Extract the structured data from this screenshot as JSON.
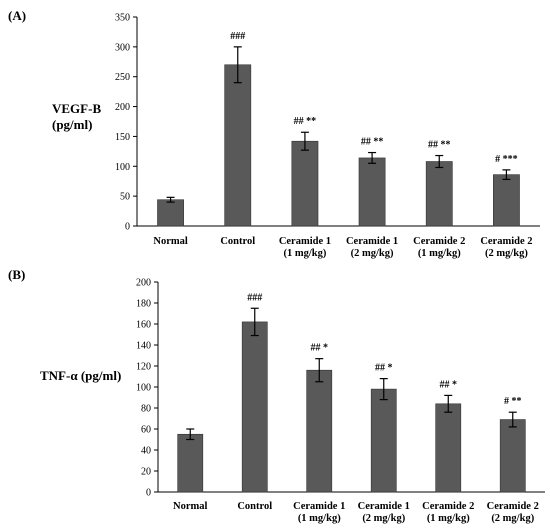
{
  "chart_data": [
    {
      "type": "bar",
      "panel_label": "(A)",
      "ylabel_lines": [
        "VEGF-B",
        "(pg/ml)"
      ],
      "categories": [
        [
          "Normal"
        ],
        [
          "Control"
        ],
        [
          "Ceramide 1",
          "(1 mg/kg)"
        ],
        [
          "Ceramide 1",
          "(2 mg/kg)"
        ],
        [
          "Ceramide 2",
          "(1 mg/kg)"
        ],
        [
          "Ceramide 2",
          "(2 mg/kg)"
        ]
      ],
      "values": [
        44,
        270,
        142,
        114,
        108,
        86
      ],
      "errors": [
        4,
        30,
        15,
        9,
        10,
        8
      ],
      "annotations": [
        "",
        "###",
        "## **",
        "## **",
        "## **",
        "# ***"
      ],
      "ylim": [
        0,
        350
      ],
      "yticks": [
        0,
        50,
        100,
        150,
        200,
        250,
        300,
        350
      ],
      "bar_color": "#595959",
      "grid": false,
      "legend": "none"
    },
    {
      "type": "bar",
      "panel_label": "(B)",
      "ylabel_lines": [
        "TNF-α (pg/ml)"
      ],
      "categories": [
        [
          "Normal"
        ],
        [
          "Control"
        ],
        [
          "Ceramide 1",
          "(1 mg/kg)"
        ],
        [
          "Ceramide 1",
          "(2 mg/kg)"
        ],
        [
          "Ceramide 2",
          "(1 mg/kg)"
        ],
        [
          "Ceramide 2",
          "(2 mg/kg)"
        ]
      ],
      "values": [
        55,
        162,
        116,
        98,
        84,
        69
      ],
      "errors": [
        5,
        13,
        11,
        10,
        8,
        7
      ],
      "annotations": [
        "",
        "###",
        "## *",
        "## *",
        "## *",
        "# **"
      ],
      "ylim": [
        0,
        200
      ],
      "yticks": [
        0,
        20,
        40,
        60,
        80,
        100,
        120,
        140,
        160,
        180,
        200
      ],
      "bar_color": "#595959",
      "grid": false,
      "legend": "none"
    }
  ]
}
